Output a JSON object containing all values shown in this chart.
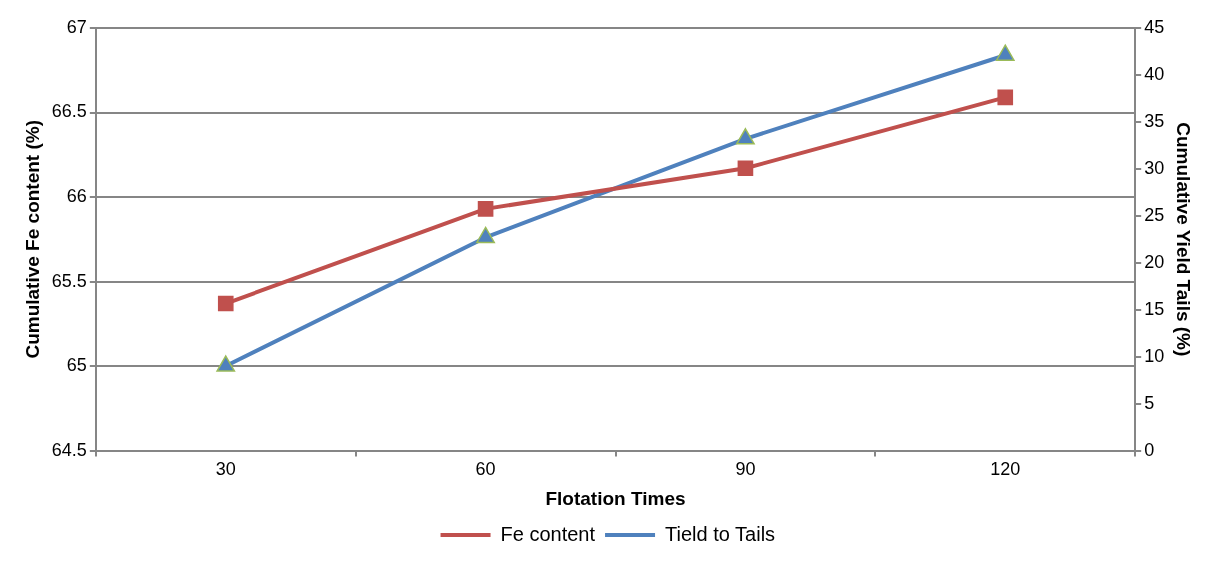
{
  "chart_data": {
    "type": "line",
    "xlabel": "Flotation Times",
    "ylabel": "Cumulative Fe content (%)",
    "y2label": "Cumulative Yield Tails (%)",
    "categories": [
      "30",
      "60",
      "90",
      "120"
    ],
    "series": [
      {
        "name": "Fe content",
        "color": "#c0504d",
        "marker": "square",
        "values": [
          65.37,
          65.93,
          66.17,
          66.59
        ]
      },
      {
        "name": "Tield to Tails",
        "color": "#4f81bd",
        "marker": "triangle",
        "axis": "y2",
        "values": [
          9,
          22.7,
          33.2,
          42.1
        ]
      }
    ],
    "ylim": [
      64.5,
      67
    ],
    "yticks": [
      64.5,
      65,
      65.5,
      66,
      66.5,
      67
    ],
    "y2lim": [
      0,
      45
    ],
    "y2ticks": [
      0,
      5,
      10,
      15,
      20,
      25,
      30,
      35,
      40,
      45
    ],
    "grid": "y",
    "legend": "bottom",
    "line_style": "solid"
  }
}
